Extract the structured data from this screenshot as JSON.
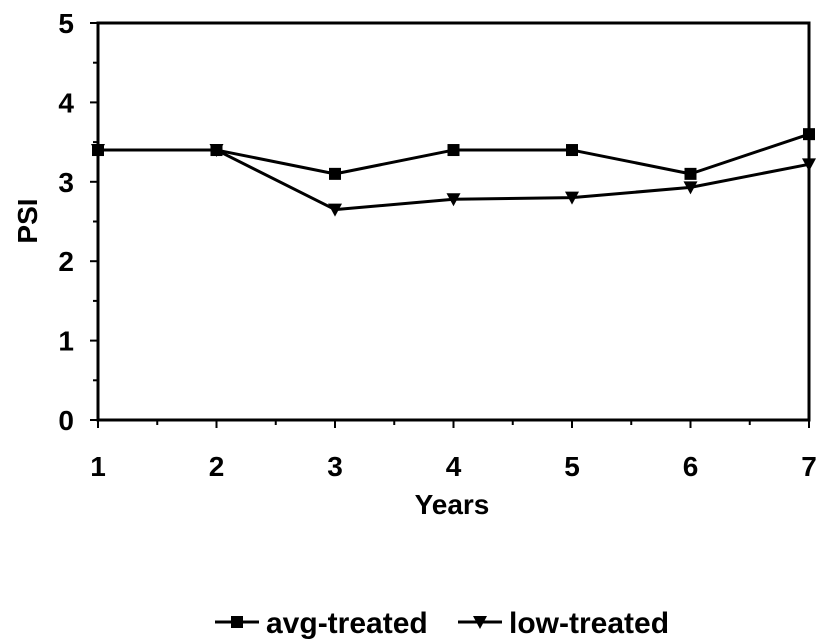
{
  "chart_data": {
    "type": "line",
    "x": [
      1,
      2,
      3,
      4,
      5,
      6,
      7
    ],
    "xlabel": "Years",
    "ylabel": "PSI",
    "xlim": [
      1,
      7
    ],
    "ylim": [
      0,
      5
    ],
    "x_ticks": [
      "1",
      "2",
      "3",
      "4",
      "5",
      "6",
      "7"
    ],
    "y_ticks": [
      "0",
      "1",
      "2",
      "3",
      "4",
      "5"
    ],
    "grid": false,
    "legend_position": "bottom",
    "series": [
      {
        "name": "avg-treated",
        "marker": "square",
        "values": [
          3.4,
          3.4,
          3.1,
          3.4,
          3.4,
          3.1,
          3.6
        ]
      },
      {
        "name": "low-treated",
        "marker": "triangle-down",
        "values": [
          3.4,
          3.4,
          2.65,
          2.78,
          2.8,
          2.93,
          3.22
        ]
      }
    ]
  }
}
